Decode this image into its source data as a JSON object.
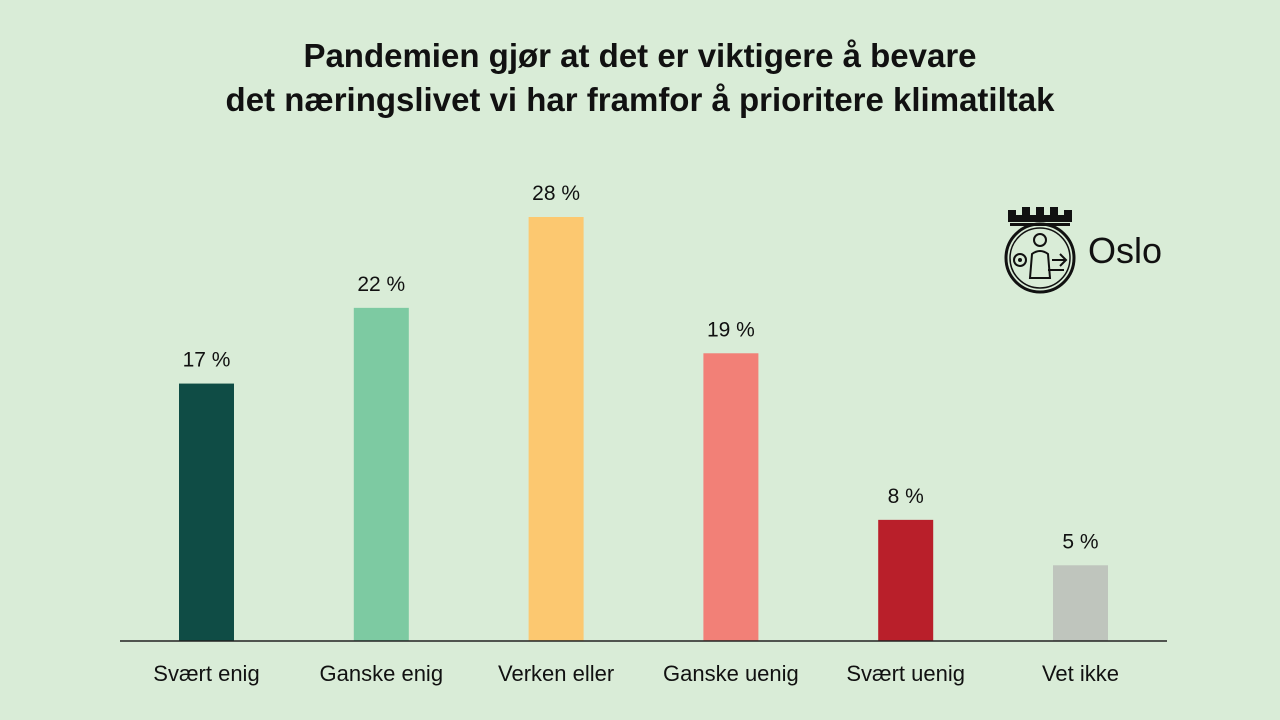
{
  "chart_data": {
    "type": "bar",
    "title_lines": [
      "Pandemien gjør at det er viktigere å bevare",
      "det næringslivet vi har framfor å prioritere klimatiltak"
    ],
    "categories": [
      "Svært enig",
      "Ganske enig",
      "Verken eller",
      "Ganske uenig",
      "Svært uenig",
      "Vet ikke"
    ],
    "values": [
      17,
      22,
      28,
      19,
      8,
      5
    ],
    "value_labels": [
      "17 %",
      "22 %",
      "28 %",
      "19 %",
      "8 %",
      "5 %"
    ],
    "colors": [
      "#0f4c45",
      "#7dcaa2",
      "#fcc870",
      "#f28077",
      "#b91f2a",
      "#bfc5bd"
    ],
    "ylim": [
      0,
      28
    ],
    "grid": false,
    "legend": "none"
  },
  "logo": {
    "text": "Oslo"
  }
}
